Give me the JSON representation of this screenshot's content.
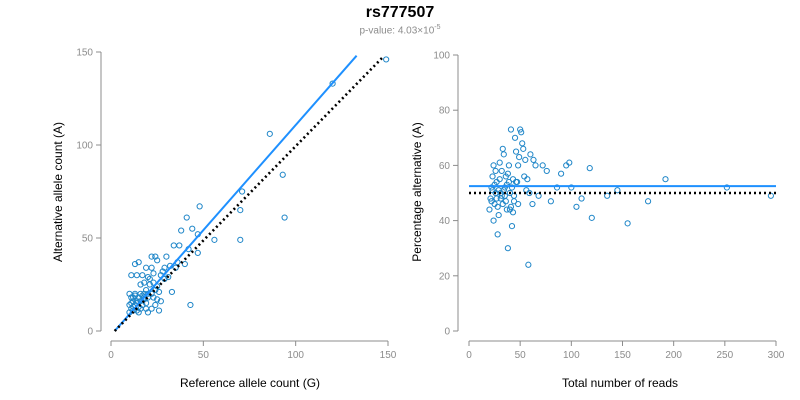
{
  "header": {
    "title": "rs777507",
    "pvalue_prefix": "p-value: 4.03×10",
    "pvalue_exponent": "-5"
  },
  "colors": {
    "points": "#1f86c8",
    "fit_line": "#1e90ff",
    "expected_line": "#000000",
    "axis": "#8c8c8c"
  },
  "chart_data": [
    {
      "type": "scatter",
      "title": "rs777507",
      "xlabel": "Reference allele count (G)",
      "ylabel": "Alternative allele count (A)",
      "xlim": [
        0,
        150
      ],
      "ylim": [
        0,
        150
      ],
      "xticks": [
        0,
        50,
        100,
        150
      ],
      "yticks": [
        0,
        50,
        100,
        150
      ],
      "grid": false,
      "lines": [
        {
          "name": "fit",
          "style": "solid",
          "x": [
            2,
            133
          ],
          "y": [
            0,
            148
          ]
        },
        {
          "name": "expected",
          "style": "dotted",
          "x": [
            2,
            147
          ],
          "y": [
            0,
            147
          ]
        }
      ],
      "points": [
        [
          10,
          10
        ],
        [
          11,
          12
        ],
        [
          12,
          11
        ],
        [
          10,
          14
        ],
        [
          12,
          16
        ],
        [
          11,
          18
        ],
        [
          13,
          20
        ],
        [
          10,
          20
        ],
        [
          14,
          11
        ],
        [
          15,
          13
        ],
        [
          13,
          14
        ],
        [
          16,
          12
        ],
        [
          12,
          13
        ],
        [
          14,
          16
        ],
        [
          11,
          15
        ],
        [
          15,
          18
        ],
        [
          13,
          19
        ],
        [
          16,
          20
        ],
        [
          17,
          19
        ],
        [
          18,
          17
        ],
        [
          15,
          10
        ],
        [
          17,
          14
        ],
        [
          19,
          12
        ],
        [
          18,
          18
        ],
        [
          20,
          20
        ],
        [
          19,
          22
        ],
        [
          21,
          25
        ],
        [
          18,
          26
        ],
        [
          20,
          29
        ],
        [
          17,
          30
        ],
        [
          14,
          30
        ],
        [
          11,
          30
        ],
        [
          19,
          34
        ],
        [
          13,
          36
        ],
        [
          15,
          37
        ],
        [
          22,
          40
        ],
        [
          24,
          40
        ],
        [
          25,
          38
        ],
        [
          22,
          34
        ],
        [
          21,
          28
        ],
        [
          23,
          26
        ],
        [
          25,
          24
        ],
        [
          24,
          22
        ],
        [
          26,
          21
        ],
        [
          23,
          18
        ],
        [
          25,
          17
        ],
        [
          27,
          16
        ],
        [
          24,
          14
        ],
        [
          22,
          12
        ],
        [
          20,
          10
        ],
        [
          26,
          11
        ],
        [
          27,
          30
        ],
        [
          28,
          32
        ],
        [
          29,
          34
        ],
        [
          30,
          40
        ],
        [
          32,
          35
        ],
        [
          34,
          46
        ],
        [
          37,
          46
        ],
        [
          38,
          54
        ],
        [
          41,
          61
        ],
        [
          40,
          36
        ],
        [
          35,
          34
        ],
        [
          33,
          21
        ],
        [
          42,
          44
        ],
        [
          44,
          55
        ],
        [
          43,
          14
        ],
        [
          48,
          67
        ],
        [
          47,
          52
        ],
        [
          47,
          42
        ],
        [
          56,
          49
        ],
        [
          70,
          49
        ],
        [
          70,
          65
        ],
        [
          71,
          75
        ],
        [
          86,
          106
        ],
        [
          93,
          84
        ],
        [
          94,
          61
        ],
        [
          120,
          133
        ],
        [
          149,
          146
        ],
        [
          29,
          28
        ],
        [
          31,
          29
        ],
        [
          16,
          16
        ],
        [
          18,
          20
        ],
        [
          12,
          18
        ],
        [
          14,
          15
        ],
        [
          20,
          18
        ],
        [
          22,
          20
        ],
        [
          19,
          15
        ],
        [
          16,
          25
        ],
        [
          23,
          31
        ],
        [
          36,
          37
        ]
      ]
    },
    {
      "type": "scatter",
      "title": "rs777507",
      "xlabel": "Total number of reads",
      "ylabel": "Percentage alternative (A)",
      "xlim": [
        0,
        300
      ],
      "ylim": [
        0,
        100
      ],
      "xticks": [
        0,
        50,
        100,
        150,
        200,
        250,
        300
      ],
      "yticks": [
        0,
        20,
        40,
        60,
        80,
        100
      ],
      "grid": false,
      "lines": [
        {
          "name": "fit",
          "style": "solid",
          "x": [
            0,
            300
          ],
          "y": [
            52.5,
            52.5
          ]
        },
        {
          "name": "expected",
          "style": "dotted",
          "x": [
            0,
            300
          ],
          "y": [
            50,
            50
          ]
        }
      ],
      "points": [
        [
          20,
          44
        ],
        [
          21,
          48
        ],
        [
          22,
          52
        ],
        [
          23,
          56
        ],
        [
          24,
          40
        ],
        [
          25,
          46
        ],
        [
          26,
          50
        ],
        [
          27,
          54
        ],
        [
          28,
          35
        ],
        [
          29,
          42
        ],
        [
          30,
          61
        ],
        [
          31,
          48
        ],
        [
          32,
          58
        ],
        [
          33,
          66
        ],
        [
          34,
          64
        ],
        [
          35,
          52
        ],
        [
          36,
          56
        ],
        [
          37,
          44
        ],
        [
          38,
          30
        ],
        [
          39,
          54
        ],
        [
          40,
          50
        ],
        [
          41,
          73
        ],
        [
          42,
          38
        ],
        [
          43,
          43
        ],
        [
          44,
          47
        ],
        [
          45,
          70
        ],
        [
          46,
          65
        ],
        [
          47,
          54
        ],
        [
          48,
          60
        ],
        [
          49,
          63
        ],
        [
          50,
          73
        ],
        [
          51,
          72
        ],
        [
          52,
          68
        ],
        [
          53,
          66
        ],
        [
          54,
          56
        ],
        [
          55,
          62
        ],
        [
          56,
          51
        ],
        [
          57,
          55
        ],
        [
          58,
          24
        ],
        [
          59,
          50
        ],
        [
          60,
          64
        ],
        [
          62,
          46
        ],
        [
          63,
          62
        ],
        [
          65,
          60
        ],
        [
          68,
          49
        ],
        [
          72,
          60
        ],
        [
          76,
          58
        ],
        [
          80,
          47
        ],
        [
          86,
          52
        ],
        [
          90,
          57
        ],
        [
          95,
          60
        ],
        [
          98,
          61
        ],
        [
          100,
          52
        ],
        [
          105,
          45
        ],
        [
          110,
          48
        ],
        [
          118,
          59
        ],
        [
          120,
          41
        ],
        [
          135,
          49
        ],
        [
          145,
          51
        ],
        [
          155,
          39
        ],
        [
          175,
          47
        ],
        [
          192,
          55
        ],
        [
          252,
          52
        ],
        [
          295,
          49
        ],
        [
          25,
          53
        ],
        [
          27,
          48
        ],
        [
          29,
          51
        ],
        [
          31,
          50
        ],
        [
          33,
          46
        ],
        [
          35,
          49
        ],
        [
          37,
          53
        ],
        [
          26,
          58
        ],
        [
          24,
          60
        ],
        [
          28,
          45
        ],
        [
          30,
          55
        ],
        [
          34,
          51
        ],
        [
          36,
          47
        ],
        [
          38,
          57
        ],
        [
          40,
          44
        ],
        [
          42,
          52
        ],
        [
          44,
          49
        ],
        [
          46,
          54
        ],
        [
          48,
          46
        ],
        [
          22,
          47
        ],
        [
          23,
          51
        ],
        [
          32,
          49
        ],
        [
          39,
          60
        ],
        [
          41,
          45
        ],
        [
          43,
          55
        ]
      ]
    }
  ]
}
